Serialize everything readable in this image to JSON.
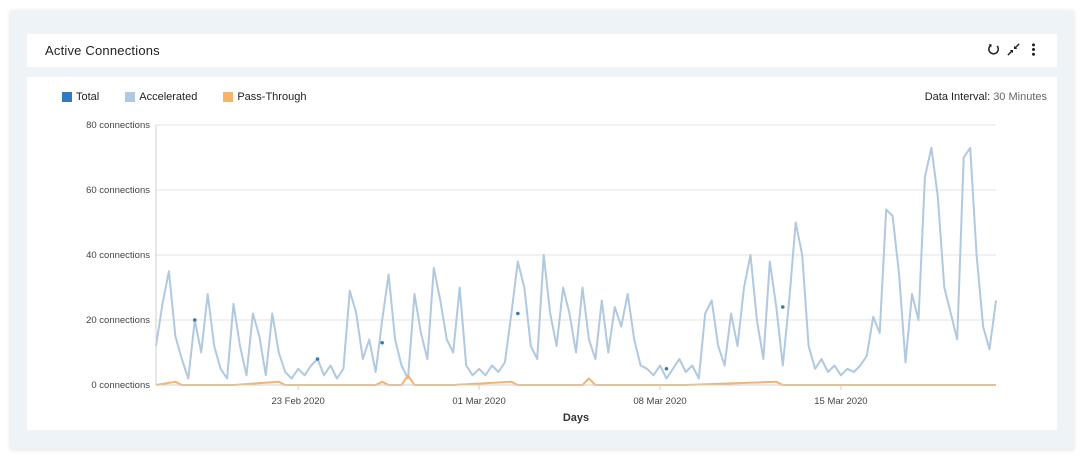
{
  "widget": {
    "title": "Active Connections",
    "icons": [
      "refresh-icon",
      "collapse-icon",
      "more-vertical-icon"
    ]
  },
  "legend": [
    {
      "label": "Total",
      "color": "#2f7bbd"
    },
    {
      "label": "Accelerated",
      "color": "#b0c9e0"
    },
    {
      "label": "Pass-Through",
      "color": "#f5b46a"
    }
  ],
  "interval": {
    "label": "Data Interval:",
    "value": "30 Minutes"
  },
  "chart_data": {
    "type": "line",
    "xlabel": "Days",
    "ylabel": "",
    "ylim": [
      0,
      80
    ],
    "yticks": [
      0,
      20,
      40,
      60,
      80
    ],
    "ytick_labels": [
      "0 connections",
      "20 connections",
      "40 connections",
      "60 connections",
      "80 connections"
    ],
    "xlim": [
      "2020-02-17T12:00",
      "2020-03-21T00:00"
    ],
    "xticks": [
      {
        "date": "2020-02-23",
        "label": "23 Feb 2020"
      },
      {
        "date": "2020-03-01",
        "label": "01 Mar 2020"
      },
      {
        "date": "2020-03-08",
        "label": "08 Mar 2020"
      },
      {
        "date": "2020-03-15",
        "label": "15 Mar 2020"
      }
    ],
    "grid": true,
    "legend_position": "top-left",
    "series": [
      {
        "name": "Accelerated",
        "color": "#b0c9e0",
        "points": [
          [
            "2020-02-17T12:00",
            12
          ],
          [
            "2020-02-17T18:00",
            25
          ],
          [
            "2020-02-18T00:00",
            35
          ],
          [
            "2020-02-18T06:00",
            15
          ],
          [
            "2020-02-18T12:00",
            8
          ],
          [
            "2020-02-18T18:00",
            2
          ],
          [
            "2020-02-19T00:00",
            20
          ],
          [
            "2020-02-19T06:00",
            10
          ],
          [
            "2020-02-19T12:00",
            28
          ],
          [
            "2020-02-19T18:00",
            12
          ],
          [
            "2020-02-20T00:00",
            5
          ],
          [
            "2020-02-20T06:00",
            2
          ],
          [
            "2020-02-20T12:00",
            25
          ],
          [
            "2020-02-20T18:00",
            12
          ],
          [
            "2020-02-21T00:00",
            3
          ],
          [
            "2020-02-21T06:00",
            22
          ],
          [
            "2020-02-21T12:00",
            15
          ],
          [
            "2020-02-21T18:00",
            3
          ],
          [
            "2020-02-22T00:00",
            22
          ],
          [
            "2020-02-22T06:00",
            10
          ],
          [
            "2020-02-22T12:00",
            4
          ],
          [
            "2020-02-22T18:00",
            2
          ],
          [
            "2020-02-23T00:00",
            5
          ],
          [
            "2020-02-23T06:00",
            3
          ],
          [
            "2020-02-23T12:00",
            6
          ],
          [
            "2020-02-23T18:00",
            8
          ],
          [
            "2020-02-24T00:00",
            3
          ],
          [
            "2020-02-24T06:00",
            6
          ],
          [
            "2020-02-24T12:00",
            2
          ],
          [
            "2020-02-24T18:00",
            5
          ],
          [
            "2020-02-25T00:00",
            29
          ],
          [
            "2020-02-25T06:00",
            22
          ],
          [
            "2020-02-25T12:00",
            8
          ],
          [
            "2020-02-25T18:00",
            14
          ],
          [
            "2020-02-26T00:00",
            4
          ],
          [
            "2020-02-26T06:00",
            20
          ],
          [
            "2020-02-26T12:00",
            34
          ],
          [
            "2020-02-26T18:00",
            14
          ],
          [
            "2020-02-27T00:00",
            6
          ],
          [
            "2020-02-27T06:00",
            2
          ],
          [
            "2020-02-27T12:00",
            28
          ],
          [
            "2020-02-27T18:00",
            16
          ],
          [
            "2020-02-28T00:00",
            8
          ],
          [
            "2020-02-28T06:00",
            36
          ],
          [
            "2020-02-28T12:00",
            26
          ],
          [
            "2020-02-28T18:00",
            14
          ],
          [
            "2020-02-29T00:00",
            10
          ],
          [
            "2020-02-29T06:00",
            30
          ],
          [
            "2020-02-29T12:00",
            6
          ],
          [
            "2020-02-29T18:00",
            3
          ],
          [
            "2020-03-01T00:00",
            5
          ],
          [
            "2020-03-01T06:00",
            3
          ],
          [
            "2020-03-01T12:00",
            6
          ],
          [
            "2020-03-01T18:00",
            4
          ],
          [
            "2020-03-02T00:00",
            7
          ],
          [
            "2020-03-02T06:00",
            22
          ],
          [
            "2020-03-02T12:00",
            38
          ],
          [
            "2020-03-02T18:00",
            30
          ],
          [
            "2020-03-03T00:00",
            12
          ],
          [
            "2020-03-03T06:00",
            8
          ],
          [
            "2020-03-03T12:00",
            40
          ],
          [
            "2020-03-03T18:00",
            22
          ],
          [
            "2020-03-04T00:00",
            12
          ],
          [
            "2020-03-04T06:00",
            30
          ],
          [
            "2020-03-04T12:00",
            22
          ],
          [
            "2020-03-04T18:00",
            10
          ],
          [
            "2020-03-05T00:00",
            30
          ],
          [
            "2020-03-05T06:00",
            14
          ],
          [
            "2020-03-05T12:00",
            8
          ],
          [
            "2020-03-05T18:00",
            26
          ],
          [
            "2020-03-06T00:00",
            10
          ],
          [
            "2020-03-06T06:00",
            24
          ],
          [
            "2020-03-06T12:00",
            18
          ],
          [
            "2020-03-06T18:00",
            28
          ],
          [
            "2020-03-07T00:00",
            14
          ],
          [
            "2020-03-07T06:00",
            6
          ],
          [
            "2020-03-07T12:00",
            5
          ],
          [
            "2020-03-07T18:00",
            3
          ],
          [
            "2020-03-08T00:00",
            6
          ],
          [
            "2020-03-08T06:00",
            2
          ],
          [
            "2020-03-08T12:00",
            5
          ],
          [
            "2020-03-08T18:00",
            8
          ],
          [
            "2020-03-09T00:00",
            4
          ],
          [
            "2020-03-09T06:00",
            6
          ],
          [
            "2020-03-09T12:00",
            2
          ],
          [
            "2020-03-09T18:00",
            22
          ],
          [
            "2020-03-10T00:00",
            26
          ],
          [
            "2020-03-10T06:00",
            12
          ],
          [
            "2020-03-10T12:00",
            6
          ],
          [
            "2020-03-10T18:00",
            22
          ],
          [
            "2020-03-11T00:00",
            12
          ],
          [
            "2020-03-11T06:00",
            30
          ],
          [
            "2020-03-11T12:00",
            40
          ],
          [
            "2020-03-11T18:00",
            20
          ],
          [
            "2020-03-12T00:00",
            8
          ],
          [
            "2020-03-12T06:00",
            38
          ],
          [
            "2020-03-12T12:00",
            24
          ],
          [
            "2020-03-12T18:00",
            6
          ],
          [
            "2020-03-13T00:00",
            26
          ],
          [
            "2020-03-13T06:00",
            50
          ],
          [
            "2020-03-13T12:00",
            40
          ],
          [
            "2020-03-13T18:00",
            12
          ],
          [
            "2020-03-14T00:00",
            5
          ],
          [
            "2020-03-14T06:00",
            8
          ],
          [
            "2020-03-14T12:00",
            4
          ],
          [
            "2020-03-14T18:00",
            6
          ],
          [
            "2020-03-15T00:00",
            3
          ],
          [
            "2020-03-15T06:00",
            5
          ],
          [
            "2020-03-15T12:00",
            4
          ],
          [
            "2020-03-15T18:00",
            6
          ],
          [
            "2020-03-16T00:00",
            9
          ],
          [
            "2020-03-16T06:00",
            21
          ],
          [
            "2020-03-16T12:00",
            16
          ],
          [
            "2020-03-16T18:00",
            54
          ],
          [
            "2020-03-17T00:00",
            52
          ],
          [
            "2020-03-17T06:00",
            34
          ],
          [
            "2020-03-17T12:00",
            7
          ],
          [
            "2020-03-17T18:00",
            28
          ],
          [
            "2020-03-18T00:00",
            20
          ],
          [
            "2020-03-18T06:00",
            64
          ],
          [
            "2020-03-18T12:00",
            73
          ],
          [
            "2020-03-18T18:00",
            58
          ],
          [
            "2020-03-19T00:00",
            30
          ],
          [
            "2020-03-19T06:00",
            22
          ],
          [
            "2020-03-19T12:00",
            14
          ],
          [
            "2020-03-19T18:00",
            70
          ],
          [
            "2020-03-20T00:00",
            73
          ],
          [
            "2020-03-20T06:00",
            40
          ],
          [
            "2020-03-20T12:00",
            18
          ],
          [
            "2020-03-20T18:00",
            11
          ],
          [
            "2020-03-21T00:00",
            26
          ]
        ]
      },
      {
        "name": "Pass-Through",
        "color": "#f5b46a",
        "points": [
          [
            "2020-02-17T12:00",
            0
          ],
          [
            "2020-02-18T06:00",
            1
          ],
          [
            "2020-02-18T12:00",
            0
          ],
          [
            "2020-02-20T12:00",
            0
          ],
          [
            "2020-02-22T06:00",
            1
          ],
          [
            "2020-02-22T12:00",
            0
          ],
          [
            "2020-02-26T00:00",
            0
          ],
          [
            "2020-02-26T06:00",
            1
          ],
          [
            "2020-02-26T12:00",
            0
          ],
          [
            "2020-02-27T00:00",
            0
          ],
          [
            "2020-02-27T06:00",
            3
          ],
          [
            "2020-02-27T12:00",
            0
          ],
          [
            "2020-02-29T00:00",
            0
          ],
          [
            "2020-03-02T06:00",
            1
          ],
          [
            "2020-03-02T12:00",
            0
          ],
          [
            "2020-03-05T00:00",
            0
          ],
          [
            "2020-03-05T06:00",
            2
          ],
          [
            "2020-03-05T12:00",
            0
          ],
          [
            "2020-03-09T00:00",
            0
          ],
          [
            "2020-03-12T12:00",
            1
          ],
          [
            "2020-03-12T18:00",
            0
          ],
          [
            "2020-03-21T00:00",
            0
          ]
        ]
      },
      {
        "name": "Total",
        "color": "#2f7bbd",
        "markers": [
          [
            "2020-02-19T00:00",
            20
          ],
          [
            "2020-02-23T18:00",
            8
          ],
          [
            "2020-02-26T06:00",
            13
          ],
          [
            "2020-03-02T12:00",
            22
          ],
          [
            "2020-03-08T06:00",
            5
          ],
          [
            "2020-03-12T18:00",
            24
          ]
        ]
      }
    ]
  }
}
